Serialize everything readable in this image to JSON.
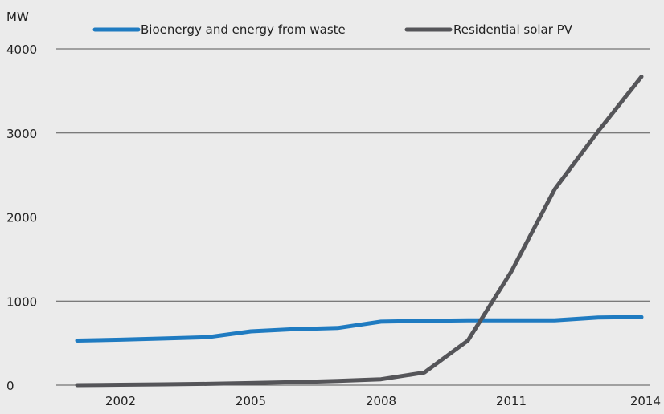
{
  "chart_data": {
    "type": "line",
    "unit_label": "MW",
    "x_ticks": [
      "2002",
      "2005",
      "2008",
      "2011",
      "2014"
    ],
    "y_ticks": [
      "0",
      "1000",
      "2000",
      "3000",
      "4000"
    ],
    "ylim": [
      0,
      4000
    ],
    "xlim": [
      2001,
      2014
    ],
    "grid": "horizontal",
    "legend_position": "top",
    "x": [
      2001,
      2002,
      2003,
      2004,
      2005,
      2006,
      2007,
      2008,
      2009,
      2010,
      2011,
      2012,
      2013,
      2014
    ],
    "series": [
      {
        "name": "Bioenergy and energy from waste",
        "color": "#1f7bc1",
        "values": [
          530,
          540,
          555,
          570,
          640,
          665,
          680,
          755,
          765,
          770,
          770,
          770,
          805,
          810
        ]
      },
      {
        "name": "Residential solar PV",
        "color": "#555559",
        "values": [
          0,
          5,
          10,
          15,
          25,
          35,
          50,
          70,
          150,
          530,
          1350,
          2330,
          3020,
          3670
        ]
      }
    ]
  }
}
